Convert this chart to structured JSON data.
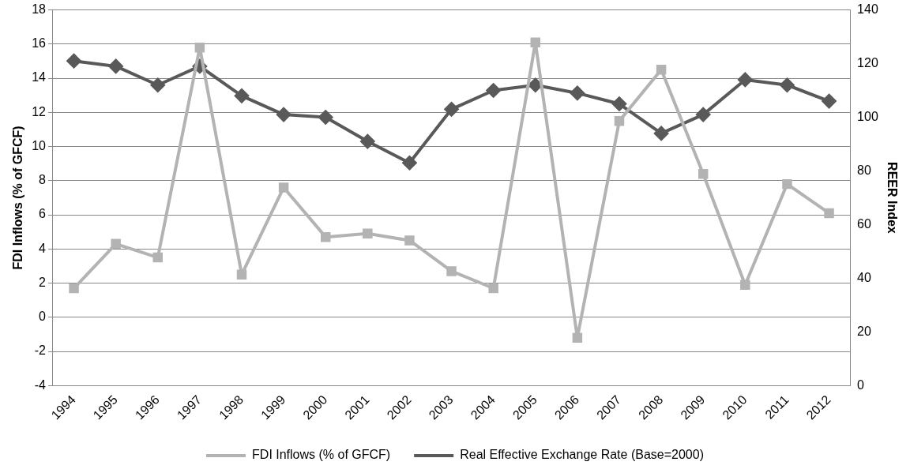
{
  "chart_data": {
    "type": "line",
    "ylabel": "FDI Inflows (% of GFCF)",
    "y2label": "REER Index",
    "categories": [
      "1994",
      "1995",
      "1996",
      "1997",
      "1998",
      "1999",
      "2000",
      "2001",
      "2002",
      "2003",
      "2004",
      "2005",
      "2006",
      "2007",
      "2008",
      "2009",
      "2010",
      "2011",
      "2012"
    ],
    "series": [
      {
        "name": "FDI Inflows (% of GFCF)",
        "color": "#b3b3b3",
        "marker": "square",
        "values": [
          1.7,
          4.3,
          3.5,
          15.8,
          2.5,
          7.6,
          4.7,
          4.9,
          4.5,
          2.7,
          1.7,
          16.1,
          -1.2,
          11.5,
          14.5,
          8.4,
          1.9,
          7.8,
          6.1
        ]
      },
      {
        "name": "Real Effective Exchange Rate (Base=2000)",
        "color": "#595959",
        "marker": "diamond",
        "axis": "y2",
        "values": [
          121,
          119,
          112,
          119,
          108,
          101,
          100,
          91,
          83,
          103,
          110,
          112,
          109,
          105,
          94,
          101,
          114,
          112,
          106
        ]
      }
    ],
    "ylim": [
      -4,
      18
    ],
    "yticks": [
      -4,
      -2,
      0,
      2,
      4,
      6,
      8,
      10,
      12,
      14,
      16,
      18
    ],
    "y2lim": [
      0,
      140
    ],
    "y2ticks": [
      0,
      20,
      40,
      60,
      80,
      100,
      120,
      140
    ],
    "grid": "y",
    "legend": "bottom",
    "line_style": "solid"
  }
}
